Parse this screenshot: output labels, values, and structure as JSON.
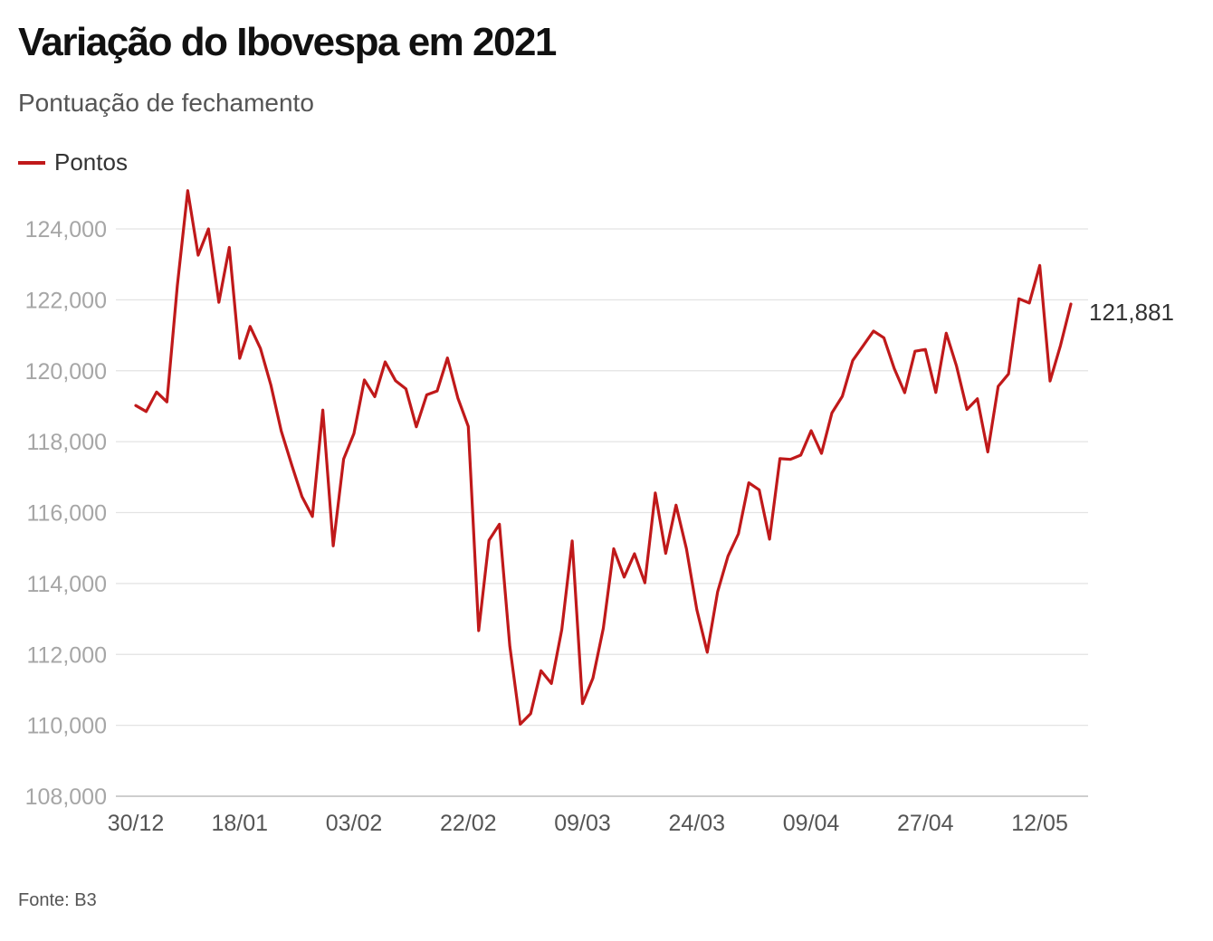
{
  "header": {
    "title": "Variação do Ibovespa em 2021",
    "subtitle": "Pontuação de fechamento"
  },
  "legend": {
    "label": "Pontos",
    "color": "#c0191a"
  },
  "footer": {
    "source": "Fonte: B3"
  },
  "chart_data": {
    "type": "line",
    "title": "Variação do Ibovespa em 2021",
    "subtitle": "Pontuação de fechamento",
    "xlabel": "",
    "ylabel": "",
    "ylim": [
      108000,
      124000
    ],
    "yticks": [
      108000,
      110000,
      112000,
      114000,
      116000,
      118000,
      120000,
      122000,
      124000
    ],
    "ytick_labels": [
      "108,000",
      "110,000",
      "112,000",
      "114,000",
      "116,000",
      "118,000",
      "120,000",
      "122,000",
      "124,000"
    ],
    "xtick_labels": [
      "30/12",
      "18/01",
      "03/02",
      "22/02",
      "09/03",
      "24/03",
      "09/04",
      "27/04",
      "12/05"
    ],
    "xtick_indices": [
      0,
      10,
      21,
      32,
      43,
      54,
      65,
      76,
      87
    ],
    "grid": true,
    "legend_position": "top-left",
    "end_label": "121,881",
    "series": [
      {
        "name": "Pontos",
        "color": "#c0191a",
        "values": [
          119020,
          118850,
          119400,
          119120,
          122400,
          125080,
          123260,
          124000,
          121930,
          123480,
          120350,
          121250,
          120630,
          119600,
          118300,
          117350,
          116450,
          115890,
          118890,
          115060,
          117510,
          118230,
          119740,
          119270,
          120250,
          119720,
          119490,
          118420,
          119320,
          119430,
          120360,
          119230,
          118430,
          112670,
          115220,
          115670,
          112230,
          110030,
          110330,
          111540,
          111180,
          112700,
          115200,
          110610,
          111330,
          112740,
          114980,
          114180,
          114840,
          114020,
          116550,
          114850,
          116210,
          114980,
          113260,
          112060,
          113770,
          114770,
          115400,
          116840,
          116640,
          115250,
          117520,
          117500,
          117620,
          118310,
          117670,
          118810,
          119280,
          120290,
          120700,
          121120,
          120930,
          120060,
          119380,
          120550,
          120600,
          119390,
          121060,
          120130,
          118910,
          119210,
          117710,
          119560,
          119910,
          122030,
          121910,
          122970,
          119710,
          120710,
          121881
        ]
      }
    ]
  }
}
